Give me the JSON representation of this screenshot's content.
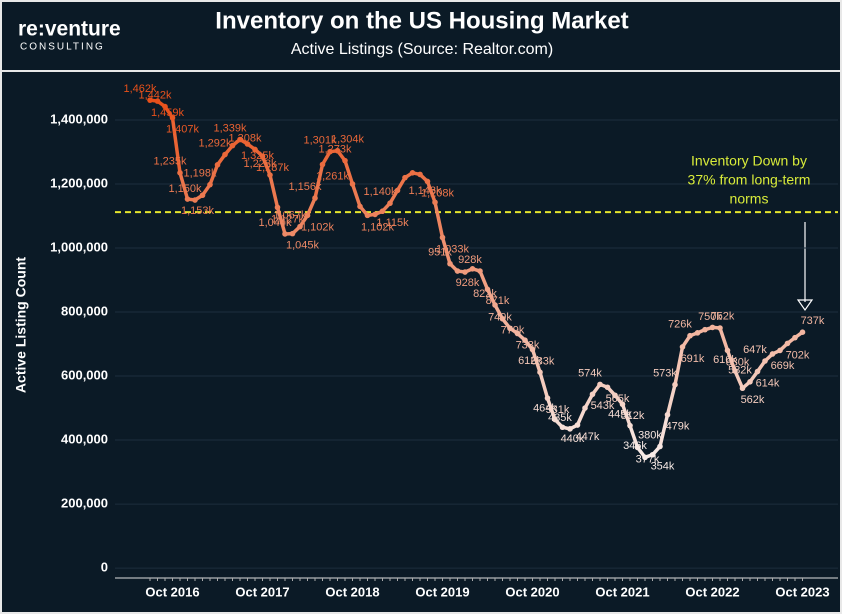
{
  "header": {
    "logo": "re:venture",
    "logo_tagline": "CONSULTING"
  },
  "chart_data": {
    "type": "line",
    "title": "Inventory on the US Housing Market",
    "subtitle": "Active Listings (Source: Realtor.com)",
    "y_label": "Active Listing Count",
    "categories": [
      null,
      null,
      null,
      "Oct 2016",
      null,
      null,
      null,
      null,
      null,
      null,
      null,
      null,
      null,
      null,
      null,
      "Oct 2017",
      null,
      null,
      null,
      null,
      null,
      null,
      null,
      null,
      null,
      null,
      null,
      "Oct 2018",
      null,
      null,
      null,
      null,
      null,
      null,
      null,
      null,
      null,
      null,
      null,
      "Oct 2019",
      null,
      null,
      null,
      null,
      null,
      null,
      null,
      null,
      null,
      null,
      null,
      "Oct 2020",
      null,
      null,
      null,
      null,
      null,
      null,
      null,
      null,
      null,
      null,
      null,
      "Oct 2021",
      null,
      null,
      null,
      null,
      null,
      null,
      null,
      null,
      null,
      null,
      null,
      "Oct 2022",
      null,
      null,
      null,
      null,
      null,
      null,
      null,
      null,
      null,
      null,
      null,
      "Oct 2023"
    ],
    "values": [
      1462000,
      1459000,
      1442000,
      1407000,
      1235000,
      1153000,
      1150000,
      1165000,
      1198000,
      1260000,
      1292000,
      1320000,
      1339000,
      1325000,
      1308000,
      1287000,
      1228000,
      1127000,
      1044000,
      1045000,
      1067000,
      1102000,
      1156000,
      1261000,
      1301000,
      1304000,
      1273000,
      1200000,
      1130000,
      1102000,
      1105000,
      1115000,
      1140000,
      1180000,
      1220000,
      1235000,
      1230000,
      1208000,
      1143000,
      1033000,
      951000,
      928000,
      925000,
      935000,
      928000,
      871000,
      822000,
      779000,
      749000,
      733000,
      712000,
      683000,
      612000,
      531000,
      464000,
      440000,
      435000,
      447000,
      500000,
      543000,
      574000,
      565000,
      540000,
      512000,
      445000,
      377000,
      346000,
      354000,
      380000,
      479000,
      573000,
      691000,
      726000,
      735000,
      745000,
      752000,
      750000,
      680000,
      616000,
      562000,
      582000,
      614000,
      647000,
      669000,
      680000,
      702000,
      720000,
      737000
    ],
    "value_labels": [
      "1,462k",
      "1,459k",
      "1,442k",
      "1,407k",
      "1,235k",
      "1,153k",
      "1,150k",
      null,
      "1,198k",
      null,
      "1,292k",
      null,
      "1,339k",
      "1,325k",
      "1,308k",
      "1,287k",
      "1,228k",
      "1,127k",
      "1,044k",
      "1,045k",
      "1,067k",
      "1,102k",
      "1,156k",
      "1,261k",
      "1,301k",
      "1,304k",
      "1,273k",
      null,
      null,
      "1,102k",
      null,
      "1,115k",
      "1,140k",
      null,
      null,
      null,
      null,
      "1,208k",
      "1,143k",
      "1,033k",
      "951k",
      "928k",
      null,
      null,
      "928k",
      "871k",
      "822k",
      "779k",
      "749k",
      "733k",
      null,
      "683k",
      "612k",
      "531k",
      "464k",
      "440k",
      "435k",
      "447k",
      null,
      "543k",
      "574k",
      "565k",
      null,
      "512k",
      "445k",
      "377k",
      "346k",
      "354k",
      "380k",
      "479k",
      "573k",
      "691k",
      "726k",
      null,
      null,
      "752k",
      "750k",
      "680k",
      "616k",
      "562k",
      "582k",
      "614k",
      "647k",
      "669k",
      null,
      "702k",
      null,
      "737k"
    ],
    "color_high": "#e8501a",
    "color_low": "#f8ece8",
    "ylim": [
      -31000,
      1550000
    ],
    "yticks": [
      0,
      {
        "value": 200000,
        "label": "200,000"
      },
      {
        "value": 400000,
        "label": "400,000"
      },
      {
        "value": 600000,
        "label": "600,000"
      },
      {
        "value": 800000,
        "label": "800,000"
      },
      {
        "value": 1000000,
        "label": "1,000,000"
      },
      {
        "value": 1200000,
        "label": "1,200,000"
      },
      {
        "value": 1400000,
        "label": "1,400,000"
      }
    ],
    "grid": true,
    "reference_line": {
      "value": 1112000,
      "color": "#e6e62e"
    },
    "annotation": {
      "lines": [
        "Inventory Down by",
        "37% from long-term",
        "norms"
      ],
      "color": "#d9ec3a"
    }
  }
}
